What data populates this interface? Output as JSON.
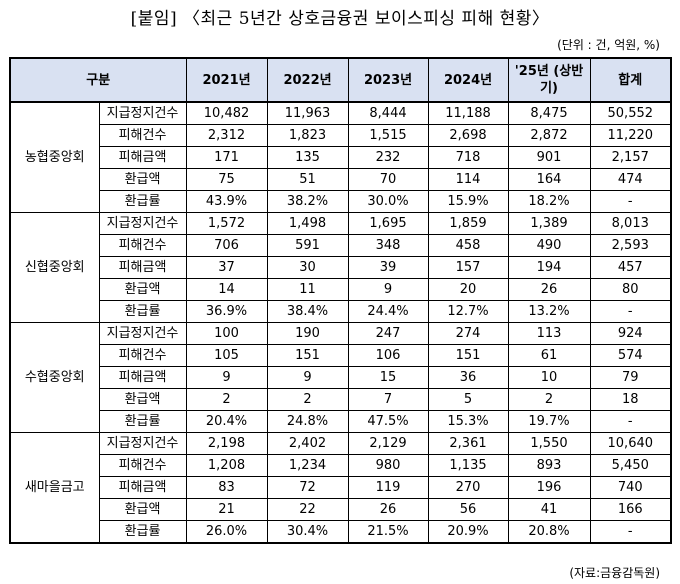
{
  "title": "[붙임] 〈최근 5년간 상호금융권 보이스피싱 피해 현황〉",
  "unit": "(단위 : 건, 억원, %)",
  "source": "(자료:금융감독원)",
  "headers": {
    "category": "구분",
    "years": [
      "2021년",
      "2022년",
      "2023년",
      "2024년",
      "'25년 (상반기)"
    ],
    "total": "합계"
  },
  "groups": [
    {
      "org": "농협중앙회",
      "rows": [
        {
          "metric": "지급정지건수",
          "values": [
            "10,482",
            "11,963",
            "8,444",
            "11,188",
            "8,475"
          ],
          "total": "50,552"
        },
        {
          "metric": "피해건수",
          "values": [
            "2,312",
            "1,823",
            "1,515",
            "2,698",
            "2,872"
          ],
          "total": "11,220"
        },
        {
          "metric": "피해금액",
          "values": [
            "171",
            "135",
            "232",
            "718",
            "901"
          ],
          "total": "2,157"
        },
        {
          "metric": "환급액",
          "values": [
            "75",
            "51",
            "70",
            "114",
            "164"
          ],
          "total": "474"
        },
        {
          "metric": "환급률",
          "values": [
            "43.9%",
            "38.2%",
            "30.0%",
            "15.9%",
            "18.2%"
          ],
          "total": "-"
        }
      ]
    },
    {
      "org": "신협중앙회",
      "rows": [
        {
          "metric": "지급정지건수",
          "values": [
            "1,572",
            "1,498",
            "1,695",
            "1,859",
            "1,389"
          ],
          "total": "8,013"
        },
        {
          "metric": "피해건수",
          "values": [
            "706",
            "591",
            "348",
            "458",
            "490"
          ],
          "total": "2,593"
        },
        {
          "metric": "피해금액",
          "values": [
            "37",
            "30",
            "39",
            "157",
            "194"
          ],
          "total": "457"
        },
        {
          "metric": "환급액",
          "values": [
            "14",
            "11",
            "9",
            "20",
            "26"
          ],
          "total": "80"
        },
        {
          "metric": "환급률",
          "values": [
            "36.9%",
            "38.4%",
            "24.4%",
            "12.7%",
            "13.2%"
          ],
          "total": "-"
        }
      ]
    },
    {
      "org": "수협중앙회",
      "rows": [
        {
          "metric": "지급정지건수",
          "values": [
            "100",
            "190",
            "247",
            "274",
            "113"
          ],
          "total": "924"
        },
        {
          "metric": "피해건수",
          "values": [
            "105",
            "151",
            "106",
            "151",
            "61"
          ],
          "total": "574"
        },
        {
          "metric": "피해금액",
          "values": [
            "9",
            "9",
            "15",
            "36",
            "10"
          ],
          "total": "79"
        },
        {
          "metric": "환급액",
          "values": [
            "2",
            "2",
            "7",
            "5",
            "2"
          ],
          "total": "18"
        },
        {
          "metric": "환급률",
          "values": [
            "20.4%",
            "24.8%",
            "47.5%",
            "15.3%",
            "19.7%"
          ],
          "total": "-"
        }
      ]
    },
    {
      "org": "새마을금고",
      "rows": [
        {
          "metric": "지급정지건수",
          "values": [
            "2,198",
            "2,402",
            "2,129",
            "2,361",
            "1,550"
          ],
          "total": "10,640"
        },
        {
          "metric": "피해건수",
          "values": [
            "1,208",
            "1,234",
            "980",
            "1,135",
            "893"
          ],
          "total": "5,450"
        },
        {
          "metric": "피해금액",
          "values": [
            "83",
            "72",
            "119",
            "270",
            "196"
          ],
          "total": "740"
        },
        {
          "metric": "환급액",
          "values": [
            "21",
            "22",
            "26",
            "56",
            "41"
          ],
          "total": "166"
        },
        {
          "metric": "환급률",
          "values": [
            "26.0%",
            "30.4%",
            "21.5%",
            "20.9%",
            "20.8%"
          ],
          "total": "-"
        }
      ]
    }
  ],
  "colors": {
    "header_bg": "#d9e1f2",
    "border": "#000000"
  }
}
